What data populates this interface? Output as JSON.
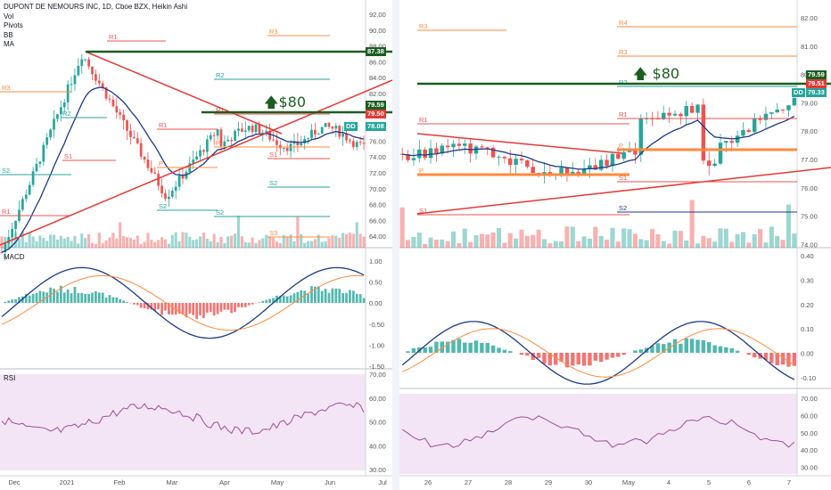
{
  "chart_data": [
    {
      "type": "candlestick",
      "title": "DUPONT DE NEMOURS INC, 1D, Cboe BZX, Heikin Ashi",
      "indicators": [
        "Vol",
        "Pivots",
        "BB",
        "MA"
      ],
      "x_ticks": [
        "Dec",
        "2021",
        "Feb",
        "Mar",
        "Apr",
        "May",
        "Jun",
        "Jul"
      ],
      "y_ticks": [
        "92.00",
        "90.00",
        "88.00",
        "86.00",
        "84.00",
        "82.00",
        "80.00",
        "78.00",
        "76.00",
        "74.00",
        "72.00",
        "70.00",
        "68.00",
        "66.00",
        "64.00"
      ],
      "ylim": [
        62.5,
        93
      ],
      "price_tags": [
        {
          "label": "87.38",
          "color": "#1b5e20"
        },
        {
          "label": "79.59",
          "color": "#1b5e20"
        },
        {
          "label": "79.50",
          "color": "#e53935"
        },
        {
          "label": "DD",
          "color": "#26a69a"
        },
        {
          "label": "78.08",
          "color": "#26a69a"
        }
      ],
      "annotation": "$80",
      "pivot_labels": [
        "R3",
        "R2",
        "R1",
        "P",
        "S1",
        "S2",
        "S3"
      ],
      "macd": {
        "label": "MACD",
        "y_ticks": [
          "1.00",
          "0.50",
          "0.00",
          "-0.50",
          "-1.00",
          "-1.50"
        ]
      },
      "rsi": {
        "label": "RSI",
        "y_ticks": [
          "70.00",
          "60.00",
          "50.00",
          "40.00",
          "30.00"
        ]
      }
    },
    {
      "type": "candlestick",
      "title": "",
      "x_ticks": [
        "26",
        "27",
        "28",
        "29",
        "30",
        "May",
        "4",
        "5",
        "6",
        "7"
      ],
      "y_ticks": [
        "82.00",
        "81.00",
        "80.00",
        "79.00",
        "78.00",
        "77.00",
        "76.00",
        "75.00",
        "74.00"
      ],
      "ylim": [
        73.7,
        82.4
      ],
      "price_tags": [
        {
          "label": "79.59",
          "color": "#1b5e20"
        },
        {
          "label": "79.51",
          "color": "#e53935"
        },
        {
          "label": "DD",
          "color": "#26a69a"
        },
        {
          "label": "79.33",
          "color": "#26a69a"
        }
      ],
      "annotation": "$80",
      "pivot_labels": [
        "R4",
        "R3",
        "R2",
        "R1",
        "P",
        "S1",
        "S2"
      ],
      "macd": {
        "y_ticks": [
          "0.40",
          "0.30",
          "0.20",
          "0.10",
          "0.00",
          "-0.10"
        ]
      },
      "rsi": {
        "y_ticks": [
          "70.00",
          "60.00",
          "50.00",
          "40.00",
          "30.00"
        ]
      }
    }
  ],
  "colors": {
    "up": "#26a69a",
    "down": "#ef5350",
    "support": "#1b5e20",
    "trend": "#e53935",
    "rsi_bg": "#f3e5f5"
  }
}
